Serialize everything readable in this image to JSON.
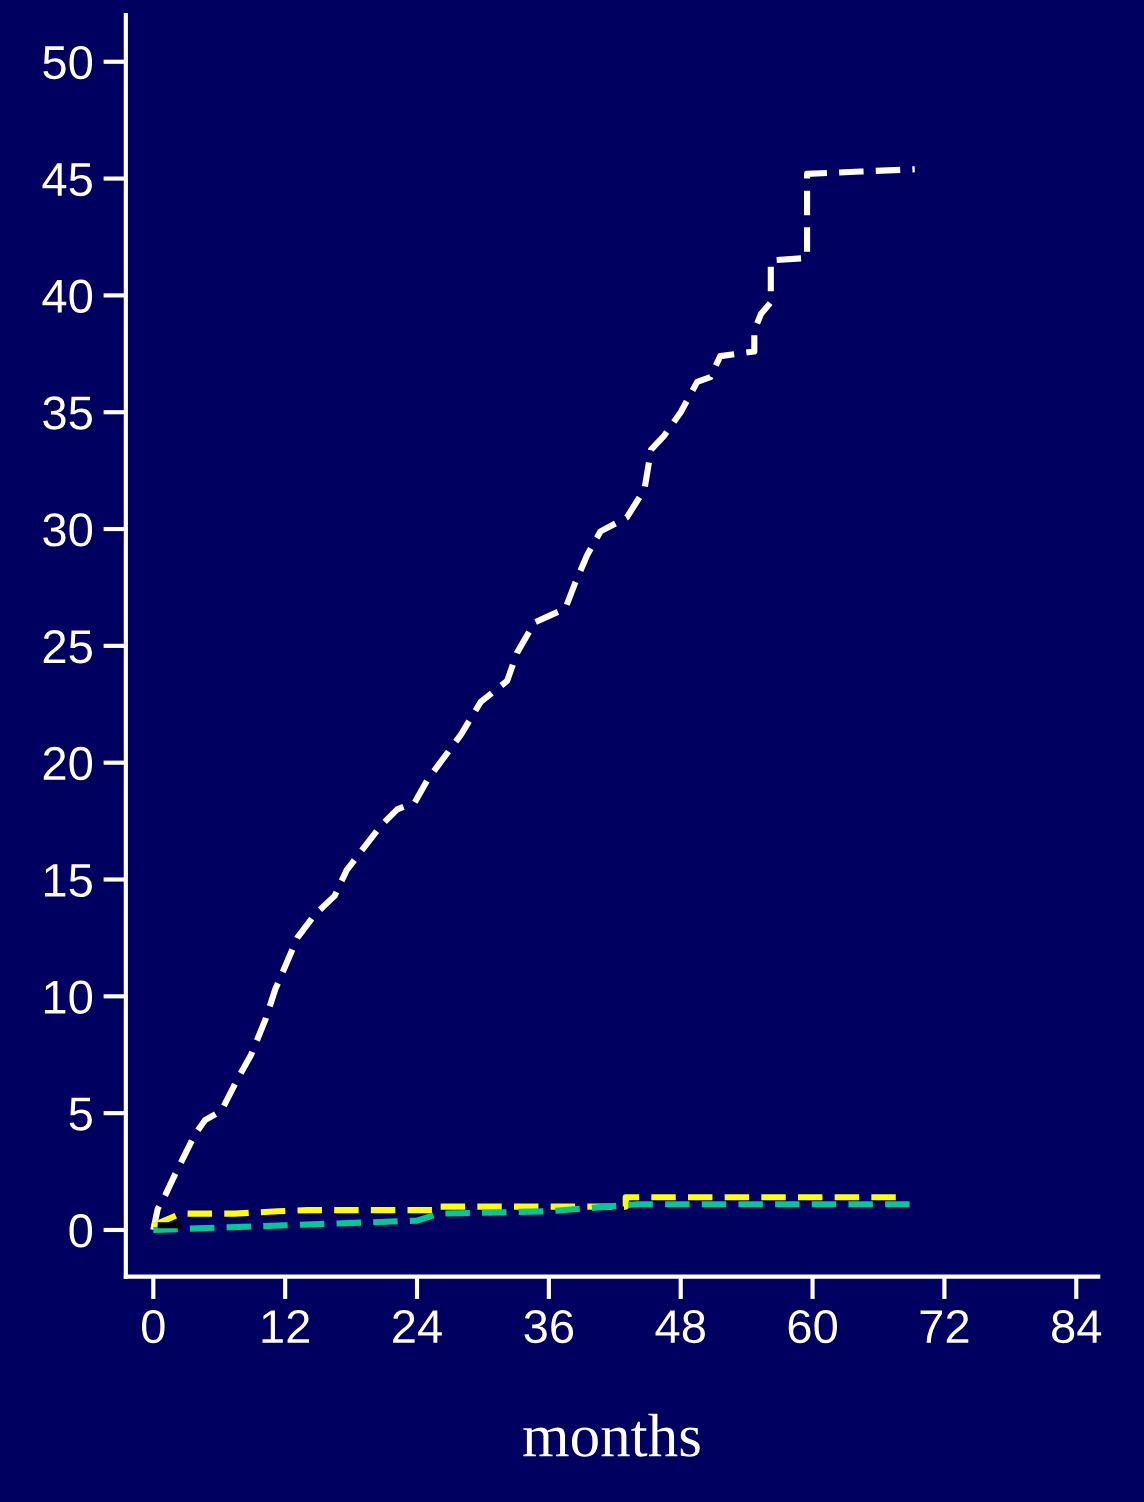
{
  "chart_data": {
    "type": "line",
    "xlabel": "months",
    "xlim": [
      -2.5,
      86
    ],
    "ylim": [
      -2,
      52
    ],
    "xticks": [
      0,
      12,
      24,
      36,
      48,
      60,
      72,
      84
    ],
    "yticks": [
      0,
      5,
      10,
      15,
      20,
      25,
      30,
      35,
      40,
      45,
      50
    ],
    "grid": false,
    "line_style": "dashed",
    "marker": "none",
    "series": [
      {
        "color": "#ffffff",
        "x": [
          0,
          0.4,
          1.1,
          2,
          3.8,
          4.7,
          6.2,
          7.6,
          8.9,
          10.2,
          11.1,
          12.2,
          13.1,
          14.7,
          16.5,
          17.6,
          18.9,
          20.7,
          22.2,
          23.8,
          25,
          28,
          29.8,
          32.2,
          33.1,
          34.7,
          37.5,
          38.4,
          39.5,
          40.7,
          43.1,
          44.7,
          45.3,
          46.5,
          48,
          49.5,
          50.7,
          51.6,
          54.7,
          54.7,
          55.3,
          56.2,
          56.2,
          59.5,
          59.5,
          64.4,
          69.3
        ],
        "values": [
          0,
          0.9,
          1.5,
          2.4,
          4.1,
          4.7,
          5.1,
          6.4,
          7.5,
          9.0,
          10.3,
          11.5,
          12.5,
          13.5,
          14.3,
          15.4,
          16.2,
          17.3,
          18.0,
          18.3,
          19.3,
          21.2,
          22.6,
          23.5,
          24.7,
          26.0,
          26.6,
          27.7,
          28.9,
          29.9,
          30.5,
          31.7,
          33.4,
          34.0,
          35.0,
          36.3,
          36.5,
          37.4,
          37.6,
          38.5,
          39.2,
          39.7,
          41.5,
          41.6,
          45.2,
          45.3,
          45.4
        ]
      },
      {
        "color": "#ffff00",
        "x": [
          0,
          2.5,
          7.4,
          11.3,
          14,
          26,
          26,
          43,
          43,
          68
        ],
        "values": [
          0.2,
          0.7,
          0.7,
          0.8,
          0.85,
          0.85,
          1.0,
          1.0,
          1.4,
          1.4
        ]
      },
      {
        "color": "#00c896",
        "x": [
          0,
          12,
          24,
          26,
          36,
          44,
          69
        ],
        "values": [
          0,
          0.2,
          0.4,
          0.7,
          0.8,
          1.1,
          1.1
        ]
      },
      {
        "color": "#000000",
        "x": [
          0.4,
          3.5
        ],
        "values": [
          0.2,
          0.2
        ]
      }
    ]
  }
}
